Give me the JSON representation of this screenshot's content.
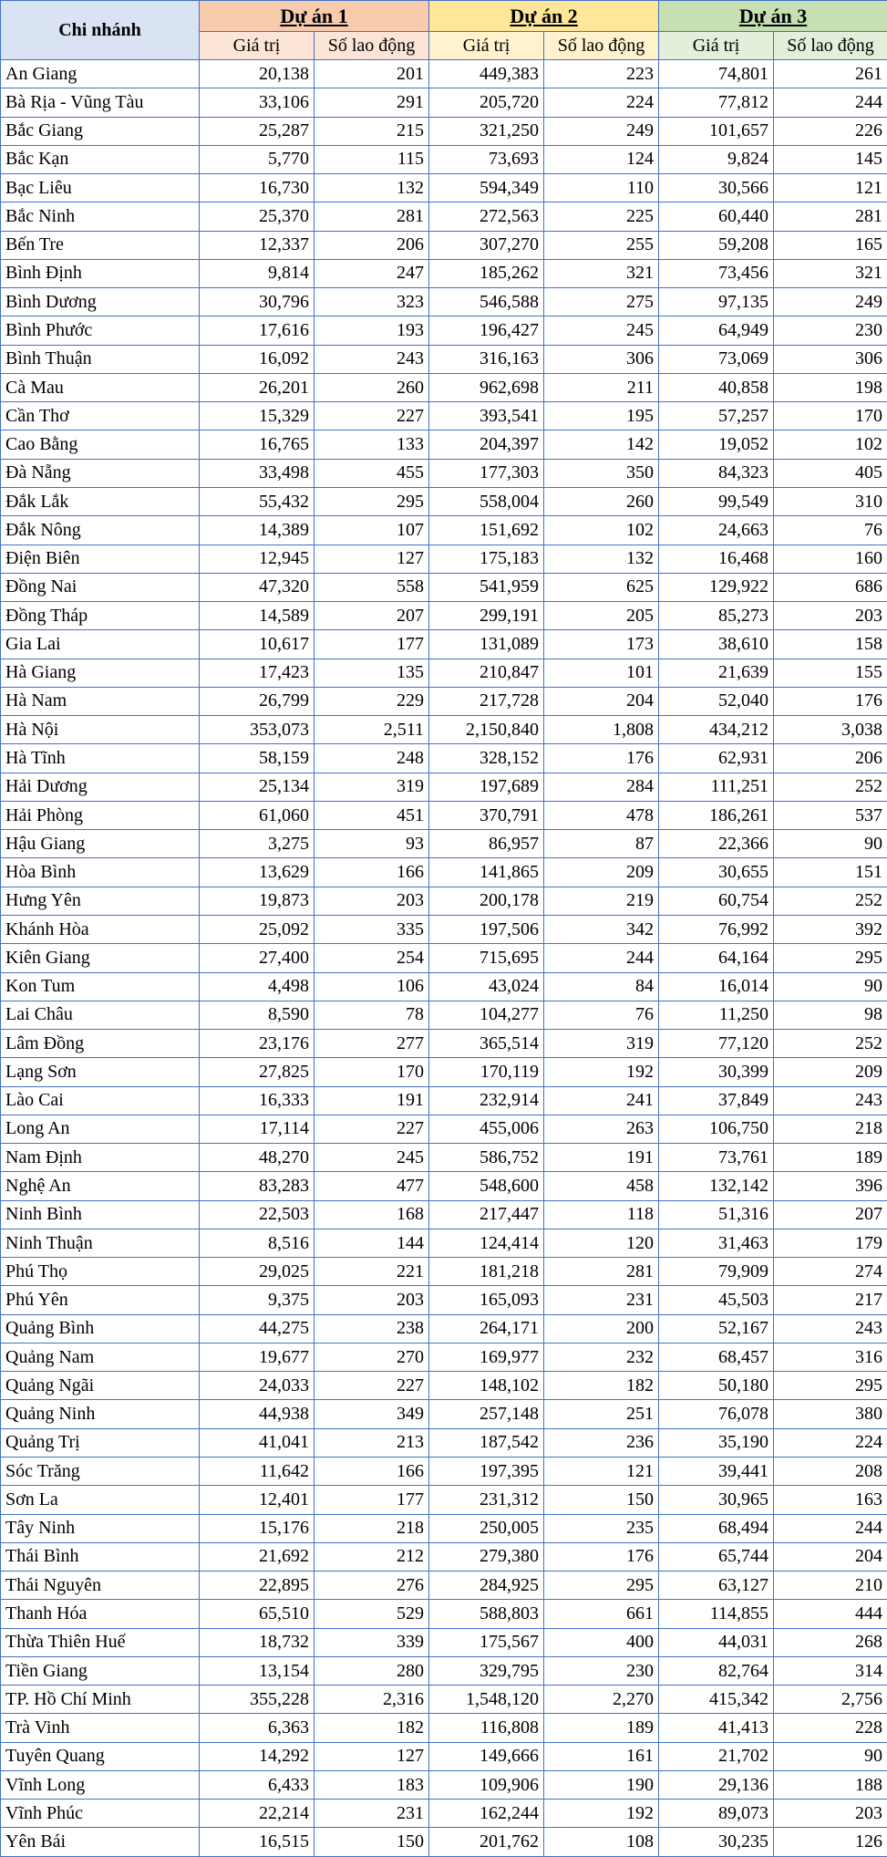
{
  "table": {
    "corner": "Chi nhánh",
    "groups": [
      "Dự án 1",
      "Dự án 2",
      "Dự án 3"
    ],
    "subheaders": [
      "Giá trị",
      "Số lao động",
      "Giá trị",
      "Số lao động",
      "Giá trị",
      "Số lao động"
    ],
    "rows": [
      [
        "An Giang",
        "20,138",
        "201",
        "449,383",
        "223",
        "74,801",
        "261"
      ],
      [
        "Bà Rịa - Vũng Tàu",
        "33,106",
        "291",
        "205,720",
        "224",
        "77,812",
        "244"
      ],
      [
        "Bắc Giang",
        "25,287",
        "215",
        "321,250",
        "249",
        "101,657",
        "226"
      ],
      [
        "Bắc Kạn",
        "5,770",
        "115",
        "73,693",
        "124",
        "9,824",
        "145"
      ],
      [
        "Bạc Liêu",
        "16,730",
        "132",
        "594,349",
        "110",
        "30,566",
        "121"
      ],
      [
        "Bắc Ninh",
        "25,370",
        "281",
        "272,563",
        "225",
        "60,440",
        "281"
      ],
      [
        "Bến Tre",
        "12,337",
        "206",
        "307,270",
        "255",
        "59,208",
        "165"
      ],
      [
        "Bình Định",
        "9,814",
        "247",
        "185,262",
        "321",
        "73,456",
        "321"
      ],
      [
        "Bình Dương",
        "30,796",
        "323",
        "546,588",
        "275",
        "97,135",
        "249"
      ],
      [
        "Bình Phước",
        "17,616",
        "193",
        "196,427",
        "245",
        "64,949",
        "230"
      ],
      [
        "Bình Thuận",
        "16,092",
        "243",
        "316,163",
        "306",
        "73,069",
        "306"
      ],
      [
        "Cà Mau",
        "26,201",
        "260",
        "962,698",
        "211",
        "40,858",
        "198"
      ],
      [
        "Cần Thơ",
        "15,329",
        "227",
        "393,541",
        "195",
        "57,257",
        "170"
      ],
      [
        "Cao Bằng",
        "16,765",
        "133",
        "204,397",
        "142",
        "19,052",
        "102"
      ],
      [
        "Đà Nẵng",
        "33,498",
        "455",
        "177,303",
        "350",
        "84,323",
        "405"
      ],
      [
        "Đắk Lắk",
        "55,432",
        "295",
        "558,004",
        "260",
        "99,549",
        "310"
      ],
      [
        "Đắk Nông",
        "14,389",
        "107",
        "151,692",
        "102",
        "24,663",
        "76"
      ],
      [
        "Điện Biên",
        "12,945",
        "127",
        "175,183",
        "132",
        "16,468",
        "160"
      ],
      [
        "Đồng Nai",
        "47,320",
        "558",
        "541,959",
        "625",
        "129,922",
        "686"
      ],
      [
        "Đồng Tháp",
        "14,589",
        "207",
        "299,191",
        "205",
        "85,273",
        "203"
      ],
      [
        "Gia Lai",
        "10,617",
        "177",
        "131,089",
        "173",
        "38,610",
        "158"
      ],
      [
        "Hà Giang",
        "17,423",
        "135",
        "210,847",
        "101",
        "21,639",
        "155"
      ],
      [
        "Hà Nam",
        "26,799",
        "229",
        "217,728",
        "204",
        "52,040",
        "176"
      ],
      [
        "Hà Nội",
        "353,073",
        "2,511",
        "2,150,840",
        "1,808",
        "434,212",
        "3,038"
      ],
      [
        "Hà Tĩnh",
        "58,159",
        "248",
        "328,152",
        "176",
        "62,931",
        "206"
      ],
      [
        "Hải Dương",
        "25,134",
        "319",
        "197,689",
        "284",
        "111,251",
        "252"
      ],
      [
        "Hải Phòng",
        "61,060",
        "451",
        "370,791",
        "478",
        "186,261",
        "537"
      ],
      [
        "Hậu Giang",
        "3,275",
        "93",
        "86,957",
        "87",
        "22,366",
        "90"
      ],
      [
        "Hòa Bình",
        "13,629",
        "166",
        "141,865",
        "209",
        "30,655",
        "151"
      ],
      [
        "Hưng Yên",
        "19,873",
        "203",
        "200,178",
        "219",
        "60,754",
        "252"
      ],
      [
        "Khánh Hòa",
        "25,092",
        "335",
        "197,506",
        "342",
        "76,992",
        "392"
      ],
      [
        "Kiên Giang",
        "27,400",
        "254",
        "715,695",
        "244",
        "64,164",
        "295"
      ],
      [
        "Kon Tum",
        "4,498",
        "106",
        "43,024",
        "84",
        "16,014",
        "90"
      ],
      [
        "Lai Châu",
        "8,590",
        "78",
        "104,277",
        "76",
        "11,250",
        "98"
      ],
      [
        "Lâm Đồng",
        "23,176",
        "277",
        "365,514",
        "319",
        "77,120",
        "252"
      ],
      [
        "Lạng Sơn",
        "27,825",
        "170",
        "170,119",
        "192",
        "30,399",
        "209"
      ],
      [
        "Lào Cai",
        "16,333",
        "191",
        "232,914",
        "241",
        "37,849",
        "243"
      ],
      [
        "Long An",
        "17,114",
        "227",
        "455,006",
        "263",
        "106,750",
        "218"
      ],
      [
        "Nam Định",
        "48,270",
        "245",
        "586,752",
        "191",
        "73,761",
        "189"
      ],
      [
        "Nghệ An",
        "83,283",
        "477",
        "548,600",
        "458",
        "132,142",
        "396"
      ],
      [
        "Ninh Bình",
        "22,503",
        "168",
        "217,447",
        "118",
        "51,316",
        "207"
      ],
      [
        "Ninh Thuận",
        "8,516",
        "144",
        "124,414",
        "120",
        "31,463",
        "179"
      ],
      [
        "Phú Thọ",
        "29,025",
        "221",
        "181,218",
        "281",
        "79,909",
        "274"
      ],
      [
        "Phú Yên",
        "9,375",
        "203",
        "165,093",
        "231",
        "45,503",
        "217"
      ],
      [
        "Quảng Bình",
        "44,275",
        "238",
        "264,171",
        "200",
        "52,167",
        "243"
      ],
      [
        "Quảng Nam",
        "19,677",
        "270",
        "169,977",
        "232",
        "68,457",
        "316"
      ],
      [
        "Quảng Ngãi",
        "24,033",
        "227",
        "148,102",
        "182",
        "50,180",
        "295"
      ],
      [
        "Quảng Ninh",
        "44,938",
        "349",
        "257,148",
        "251",
        "76,078",
        "380"
      ],
      [
        "Quảng Trị",
        "41,041",
        "213",
        "187,542",
        "236",
        "35,190",
        "224"
      ],
      [
        "Sóc Trăng",
        "11,642",
        "166",
        "197,395",
        "121",
        "39,441",
        "208"
      ],
      [
        "Sơn La",
        "12,401",
        "177",
        "231,312",
        "150",
        "30,965",
        "163"
      ],
      [
        "Tây Ninh",
        "15,176",
        "218",
        "250,005",
        "235",
        "68,494",
        "244"
      ],
      [
        "Thái Bình",
        "21,692",
        "212",
        "279,380",
        "176",
        "65,744",
        "204"
      ],
      [
        "Thái Nguyên",
        "22,895",
        "276",
        "284,925",
        "295",
        "63,127",
        "210"
      ],
      [
        "Thanh Hóa",
        "65,510",
        "529",
        "588,803",
        "661",
        "114,855",
        "444"
      ],
      [
        "Thừa Thiên Huế",
        "18,732",
        "339",
        "175,567",
        "400",
        "44,031",
        "268"
      ],
      [
        "Tiền Giang",
        "13,154",
        "280",
        "329,795",
        "230",
        "82,764",
        "314"
      ],
      [
        "TP. Hồ Chí Minh",
        "355,228",
        "2,316",
        "1,548,120",
        "2,270",
        "415,342",
        "2,756"
      ],
      [
        "Trà Vinh",
        "6,363",
        "182",
        "116,808",
        "189",
        "41,413",
        "228"
      ],
      [
        "Tuyên Quang",
        "14,292",
        "127",
        "149,666",
        "161",
        "21,702",
        "90"
      ],
      [
        "Vĩnh Long",
        "6,433",
        "183",
        "109,906",
        "190",
        "29,136",
        "188"
      ],
      [
        "Vĩnh Phúc",
        "22,214",
        "231",
        "162,244",
        "192",
        "89,073",
        "203"
      ],
      [
        "Yên Bái",
        "16,515",
        "150",
        "201,762",
        "108",
        "30,235",
        "126"
      ]
    ]
  }
}
